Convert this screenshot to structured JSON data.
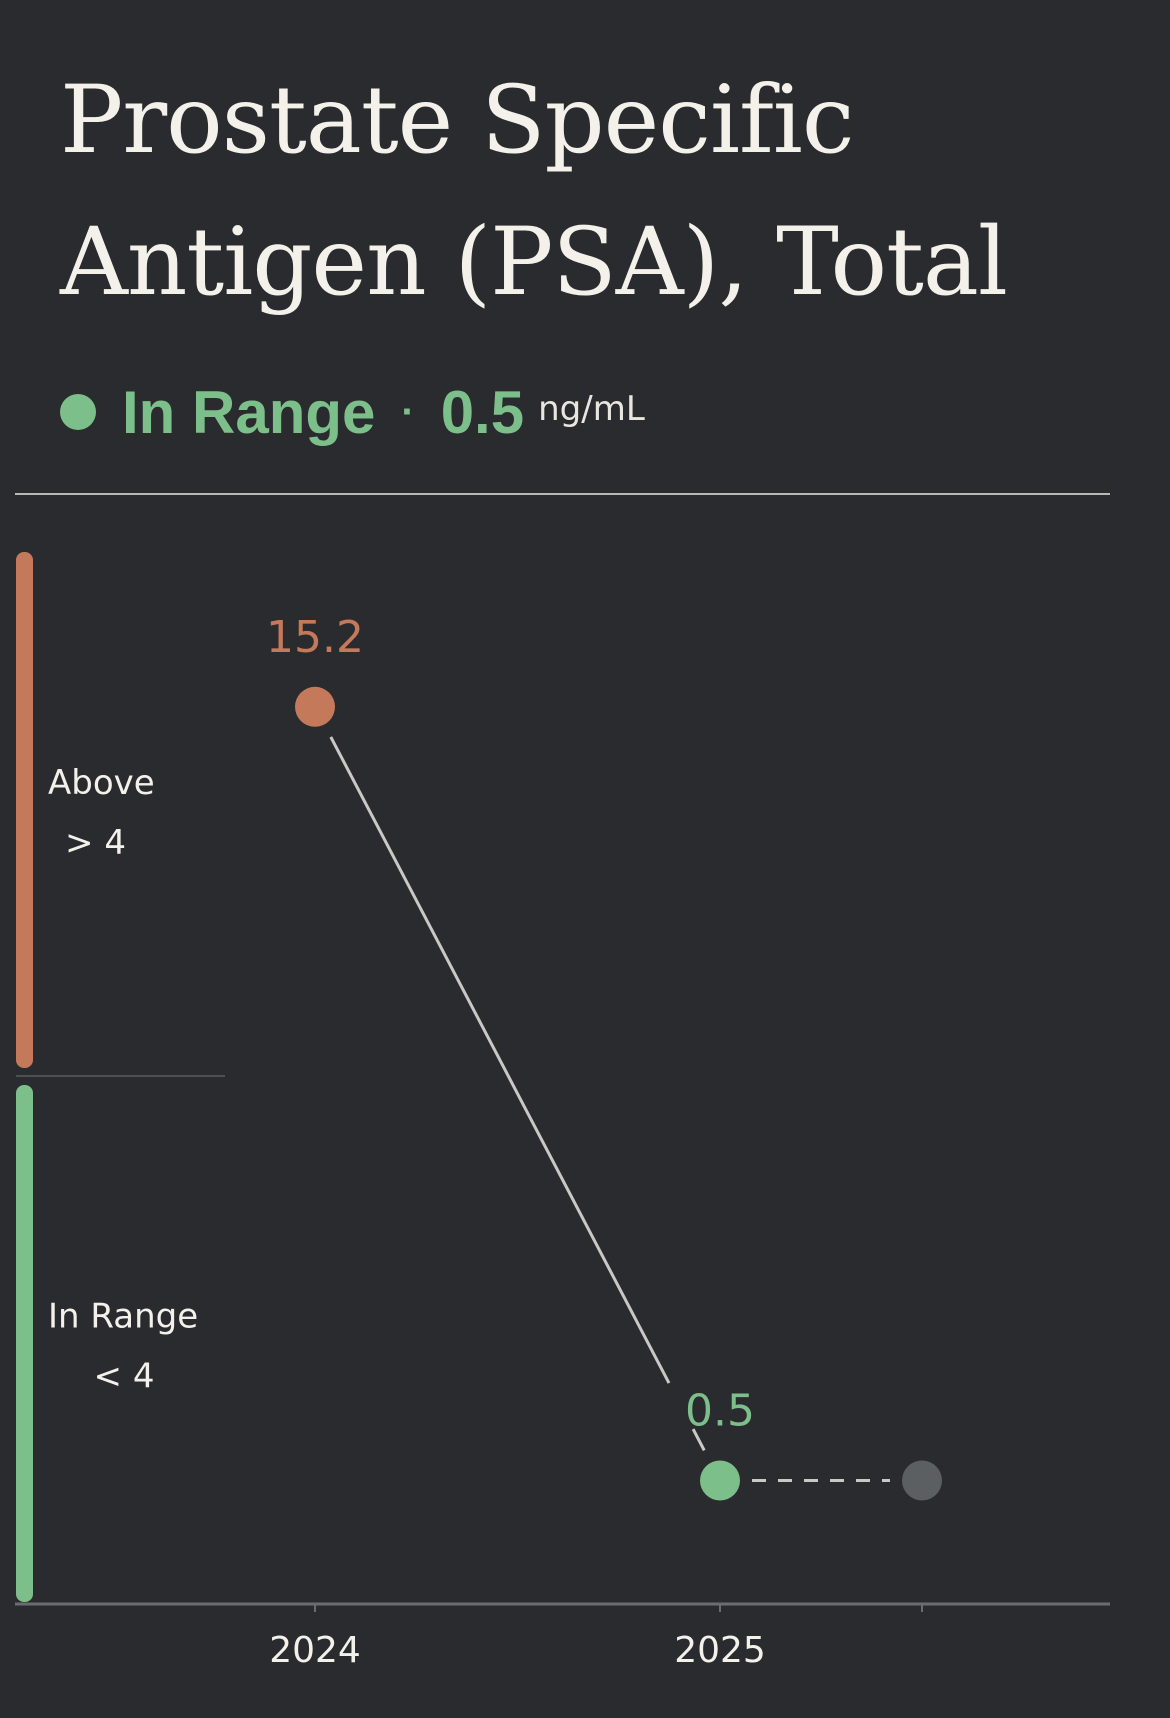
{
  "header": {
    "title": "Prostate Specific Antigen (PSA), Total",
    "status": {
      "label": "In Range",
      "separator": "·",
      "value": "0.5",
      "unit": "ng/mL",
      "color": "#7dbf8a"
    }
  },
  "colors": {
    "above": "#c47a5a",
    "in_range": "#7dbf8a",
    "future": "#5c5f62",
    "line": "#c9c8c4"
  },
  "chart_data": {
    "type": "line",
    "ranges": [
      {
        "name": "Above",
        "threshold": "> 4",
        "color": "#c47a5a"
      },
      {
        "name": "In Range",
        "threshold": "< 4",
        "color": "#7dbf8a"
      }
    ],
    "categories": [
      "2024",
      "2025"
    ],
    "points": [
      {
        "x": "2024",
        "y": 15.2,
        "label": "15.2",
        "status": "above"
      },
      {
        "x": "2025",
        "y": 0.5,
        "label": "0.5",
        "status": "in_range"
      }
    ],
    "projection": {
      "from": "2025",
      "status": "future",
      "style": "dashed"
    }
  }
}
